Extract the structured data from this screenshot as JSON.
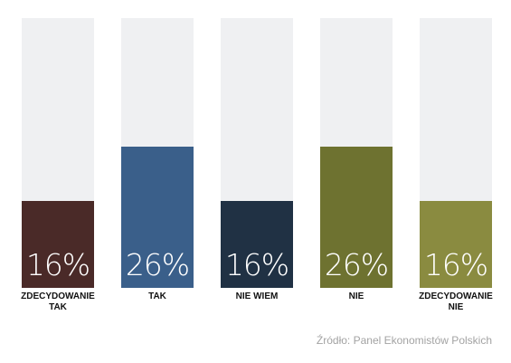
{
  "chart_data": {
    "type": "bar",
    "categories": [
      "ZDECYDOWANIE\nTAK",
      "TAK",
      "NIE WIEM",
      "NIE",
      "ZDECYDOWANIE\nNIE"
    ],
    "values": [
      16,
      26,
      16,
      26,
      16
    ],
    "value_labels": [
      "16%",
      "26%",
      "16%",
      "26%",
      "16%"
    ],
    "ylim": [
      0,
      100
    ],
    "colors": [
      "#4a2a28",
      "#3a5f8a",
      "#203144",
      "#6e7230",
      "#8a8b40"
    ],
    "track_color": "#eff0f2",
    "grid": false
  },
  "source": "Źródło: Panel Ekonomistów Polskich"
}
